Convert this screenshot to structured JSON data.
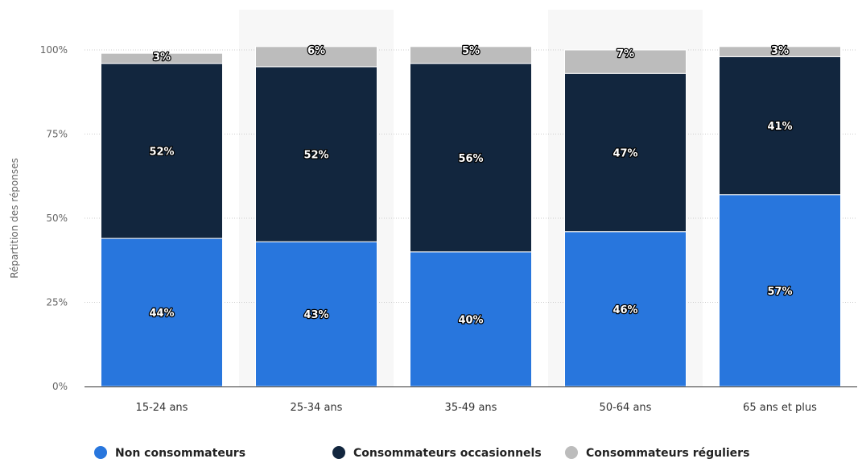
{
  "chart_data": {
    "type": "bar",
    "stacked": true,
    "title": "",
    "xlabel": "",
    "ylabel": "Répartition des réponses",
    "ylim": [
      0,
      100
    ],
    "y_ticks": [
      "0%",
      "25%",
      "50%",
      "75%",
      "100%"
    ],
    "y_tick_values": [
      0,
      25,
      50,
      75,
      100
    ],
    "grid": true,
    "legend_position": "bottom-center",
    "categories": [
      "15-24 ans",
      "25-34 ans",
      "35-49 ans",
      "50-64 ans",
      "65 ans et plus"
    ],
    "highlighted_categories": [
      1,
      3
    ],
    "series": [
      {
        "name": "Non consommateurs",
        "color": "#2876dd",
        "values": [
          44,
          43,
          40,
          46,
          57
        ],
        "labels": [
          "44%",
          "43%",
          "40%",
          "46%",
          "57%"
        ]
      },
      {
        "name": "Consommateurs occasionnels",
        "color": "#12263e",
        "values": [
          52,
          52,
          56,
          47,
          41
        ],
        "labels": [
          "52%",
          "52%",
          "56%",
          "47%",
          "41%"
        ]
      },
      {
        "name": "Consommateurs réguliers",
        "color": "#bcbcbc",
        "values": [
          3,
          6,
          5,
          7,
          3
        ],
        "labels": [
          "3%",
          "6%",
          "5%",
          "7%",
          "3%"
        ]
      }
    ]
  }
}
